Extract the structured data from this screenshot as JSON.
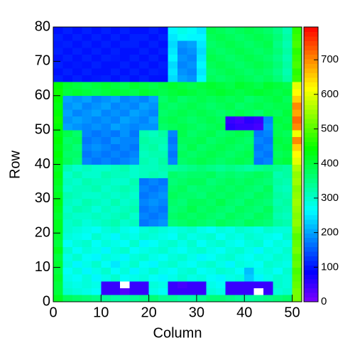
{
  "chart_data": {
    "type": "heatmap",
    "xlabel": "Column",
    "ylabel": "Row",
    "xlim": [
      0,
      52
    ],
    "ylim": [
      0,
      80
    ],
    "zlim": [
      0,
      795
    ],
    "xticks": [
      0,
      10,
      20,
      30,
      40,
      50
    ],
    "yticks": [
      0,
      10,
      20,
      30,
      40,
      50,
      60,
      70,
      80
    ],
    "zticks": [
      0,
      100,
      200,
      300,
      400,
      500,
      600,
      700
    ],
    "colorscale": [
      "#7f00ff",
      "#0000ff",
      "#0080ff",
      "#00ffff",
      "#00ff80",
      "#00ff00",
      "#80ff00",
      "#ffff00",
      "#ff8000",
      "#ff0000"
    ],
    "z": [
      [
        420,
        380,
        370,
        360,
        350,
        340,
        330,
        330,
        340,
        350,
        360,
        340,
        340,
        330,
        330,
        340,
        360,
        360,
        350,
        340,
        330,
        340,
        350,
        360,
        370,
        520
      ],
      [
        400,
        300,
        290,
        280,
        270,
        50,
        50,
        30,
        50,
        50,
        280,
        270,
        50,
        50,
        50,
        50,
        290,
        280,
        50,
        50,
        50,
        0,
        50,
        290,
        300,
        520
      ],
      [
        400,
        290,
        280,
        290,
        280,
        50,
        50,
        0,
        50,
        50,
        290,
        280,
        50,
        40,
        50,
        50,
        280,
        270,
        50,
        50,
        50,
        50,
        50,
        300,
        290,
        510
      ],
      [
        410,
        280,
        270,
        290,
        260,
        280,
        300,
        270,
        280,
        290,
        270,
        260,
        280,
        300,
        280,
        290,
        270,
        260,
        280,
        290,
        230,
        260,
        280,
        300,
        290,
        500
      ],
      [
        400,
        270,
        290,
        260,
        280,
        300,
        270,
        290,
        260,
        280,
        300,
        280,
        270,
        290,
        300,
        270,
        280,
        300,
        290,
        270,
        220,
        280,
        290,
        270,
        300,
        490
      ],
      [
        410,
        290,
        260,
        280,
        300,
        270,
        250,
        280,
        300,
        270,
        260,
        290,
        300,
        280,
        270,
        290,
        300,
        280,
        260,
        290,
        280,
        270,
        300,
        290,
        280,
        510
      ],
      [
        400,
        280,
        300,
        270,
        260,
        290,
        280,
        260,
        290,
        300,
        280,
        270,
        290,
        300,
        280,
        260,
        270,
        290,
        300,
        280,
        270,
        290,
        280,
        300,
        290,
        500
      ],
      [
        420,
        300,
        270,
        290,
        280,
        260,
        290,
        300,
        270,
        280,
        290,
        300,
        280,
        270,
        290,
        300,
        280,
        270,
        290,
        300,
        280,
        260,
        290,
        280,
        300,
        520
      ],
      [
        400,
        270,
        290,
        300,
        270,
        290,
        280,
        270,
        300,
        260,
        270,
        290,
        300,
        280,
        300,
        270,
        290,
        300,
        280,
        270,
        290,
        300,
        270,
        290,
        280,
        510
      ],
      [
        410,
        290,
        280,
        270,
        300,
        280,
        260,
        290,
        280,
        300,
        290,
        280,
        270,
        300,
        280,
        290,
        300,
        270,
        290,
        280,
        300,
        290,
        280,
        270,
        300,
        500
      ],
      [
        420,
        300,
        290,
        280,
        270,
        290,
        300,
        280,
        270,
        290,
        300,
        290,
        280,
        290,
        300,
        280,
        270,
        290,
        280,
        300,
        290,
        280,
        300,
        290,
        290,
        520
      ],
      [
        420,
        300,
        310,
        290,
        300,
        310,
        320,
        300,
        310,
        170,
        180,
        190,
        360,
        370,
        380,
        370,
        360,
        380,
        370,
        360,
        380,
        370,
        360,
        330,
        320,
        540
      ],
      [
        410,
        310,
        300,
        300,
        310,
        300,
        310,
        320,
        300,
        180,
        170,
        180,
        370,
        380,
        370,
        380,
        370,
        360,
        380,
        370,
        360,
        380,
        370,
        320,
        310,
        530
      ],
      [
        420,
        300,
        320,
        310,
        290,
        310,
        300,
        310,
        320,
        170,
        180,
        170,
        360,
        370,
        390,
        370,
        380,
        370,
        360,
        380,
        370,
        360,
        380,
        330,
        320,
        540
      ],
      [
        430,
        310,
        300,
        320,
        310,
        300,
        320,
        300,
        310,
        180,
        190,
        180,
        370,
        360,
        380,
        380,
        370,
        390,
        370,
        360,
        380,
        370,
        360,
        320,
        330,
        550
      ],
      [
        420,
        320,
        310,
        300,
        300,
        310,
        300,
        310,
        300,
        170,
        180,
        190,
        380,
        370,
        370,
        360,
        380,
        370,
        380,
        370,
        360,
        380,
        370,
        330,
        320,
        540
      ],
      [
        410,
        300,
        310,
        310,
        320,
        300,
        310,
        320,
        310,
        180,
        170,
        180,
        370,
        380,
        360,
        370,
        370,
        380,
        370,
        380,
        370,
        360,
        380,
        320,
        310,
        530
      ],
      [
        420,
        310,
        300,
        320,
        310,
        310,
        300,
        300,
        320,
        170,
        180,
        170,
        360,
        370,
        380,
        380,
        360,
        370,
        380,
        370,
        380,
        370,
        360,
        330,
        320,
        550
      ],
      [
        430,
        300,
        320,
        300,
        300,
        320,
        310,
        310,
        300,
        310,
        320,
        310,
        370,
        360,
        370,
        370,
        380,
        360,
        370,
        360,
        370,
        380,
        370,
        320,
        330,
        540
      ],
      [
        420,
        320,
        300,
        310,
        300,
        300,
        310,
        320,
        300,
        310,
        310,
        320,
        330,
        340,
        350,
        360,
        350,
        340,
        350,
        340,
        330,
        340,
        350,
        340,
        330,
        560
      ],
      [
        430,
        380,
        360,
        180,
        170,
        180,
        170,
        180,
        190,
        320,
        310,
        330,
        180,
        370,
        380,
        390,
        380,
        370,
        380,
        390,
        380,
        170,
        180,
        390,
        400,
        600
      ],
      [
        440,
        370,
        370,
        170,
        180,
        170,
        180,
        170,
        180,
        310,
        320,
        320,
        170,
        380,
        370,
        380,
        390,
        380,
        370,
        380,
        390,
        180,
        170,
        380,
        390,
        620
      ],
      [
        430,
        380,
        360,
        180,
        190,
        180,
        170,
        180,
        170,
        320,
        330,
        310,
        180,
        370,
        390,
        370,
        380,
        390,
        380,
        370,
        380,
        170,
        180,
        390,
        400,
        650
      ],
      [
        440,
        370,
        380,
        170,
        180,
        170,
        190,
        180,
        180,
        330,
        320,
        320,
        170,
        380,
        380,
        390,
        370,
        380,
        390,
        380,
        370,
        180,
        170,
        400,
        390,
        700
      ],
      [
        430,
        390,
        370,
        180,
        170,
        180,
        170,
        190,
        170,
        320,
        310,
        330,
        180,
        390,
        370,
        380,
        390,
        370,
        380,
        390,
        380,
        170,
        180,
        390,
        380,
        610
      ],
      [
        440,
        200,
        190,
        180,
        190,
        180,
        200,
        190,
        180,
        190,
        190,
        370,
        380,
        390,
        380,
        370,
        380,
        390,
        60,
        50,
        50,
        40,
        190,
        390,
        400,
        700
      ],
      [
        450,
        190,
        200,
        190,
        180,
        190,
        180,
        200,
        190,
        180,
        200,
        380,
        390,
        380,
        370,
        380,
        390,
        380,
        50,
        40,
        60,
        50,
        180,
        400,
        390,
        720
      ],
      [
        440,
        200,
        180,
        190,
        200,
        180,
        190,
        180,
        200,
        190,
        180,
        370,
        380,
        390,
        380,
        390,
        380,
        370,
        380,
        390,
        380,
        370,
        390,
        380,
        400,
        680
      ],
      [
        430,
        190,
        200,
        180,
        190,
        200,
        180,
        190,
        180,
        200,
        190,
        380,
        370,
        380,
        390,
        380,
        370,
        380,
        390,
        370,
        380,
        390,
        380,
        390,
        390,
        700
      ],
      [
        440,
        200,
        190,
        200,
        180,
        190,
        200,
        180,
        190,
        180,
        200,
        370,
        390,
        370,
        380,
        390,
        380,
        390,
        380,
        390,
        370,
        380,
        390,
        400,
        380,
        650
      ],
      [
        450,
        400,
        410,
        400,
        390,
        400,
        410,
        400,
        390,
        410,
        400,
        390,
        400,
        410,
        400,
        390,
        400,
        410,
        400,
        390,
        400,
        410,
        400,
        390,
        400,
        620
      ],
      [
        440,
        410,
        400,
        390,
        400,
        410,
        400,
        390,
        410,
        400,
        390,
        400,
        410,
        400,
        390,
        400,
        410,
        400,
        390,
        410,
        400,
        390,
        410,
        400,
        390,
        600
      ],
      [
        110,
        100,
        110,
        100,
        105,
        110,
        100,
        110,
        100,
        110,
        100,
        100,
        240,
        200,
        190,
        260,
        380,
        370,
        380,
        390,
        380,
        370,
        380,
        360,
        330,
        480
      ],
      [
        100,
        110,
        100,
        110,
        100,
        100,
        110,
        100,
        110,
        100,
        110,
        105,
        250,
        190,
        180,
        250,
        370,
        380,
        390,
        380,
        370,
        380,
        370,
        350,
        320,
        470
      ],
      [
        110,
        100,
        105,
        100,
        110,
        100,
        100,
        110,
        100,
        110,
        100,
        110,
        240,
        180,
        190,
        260,
        380,
        390,
        380,
        370,
        380,
        390,
        380,
        360,
        330,
        490
      ],
      [
        100,
        110,
        100,
        110,
        100,
        110,
        105,
        100,
        110,
        100,
        110,
        100,
        260,
        190,
        180,
        250,
        390,
        380,
        370,
        380,
        390,
        380,
        370,
        350,
        320,
        480
      ],
      [
        110,
        100,
        110,
        100,
        110,
        100,
        110,
        100,
        100,
        110,
        100,
        110,
        250,
        180,
        190,
        240,
        380,
        370,
        380,
        390,
        380,
        370,
        380,
        360,
        330,
        470
      ],
      [
        105,
        110,
        100,
        110,
        100,
        110,
        100,
        110,
        110,
        100,
        110,
        100,
        240,
        190,
        200,
        250,
        370,
        380,
        390,
        380,
        370,
        380,
        390,
        350,
        320,
        490
      ],
      [
        110,
        100,
        110,
        100,
        110,
        100,
        110,
        100,
        110,
        110,
        100,
        110,
        250,
        270,
        260,
        260,
        380,
        390,
        380,
        370,
        380,
        390,
        380,
        360,
        330,
        480
      ],
      [
        100,
        110,
        100,
        110,
        100,
        110,
        100,
        110,
        100,
        100,
        110,
        100,
        260,
        280,
        270,
        250,
        390,
        380,
        370,
        380,
        390,
        380,
        370,
        350,
        320,
        470
      ]
    ]
  }
}
